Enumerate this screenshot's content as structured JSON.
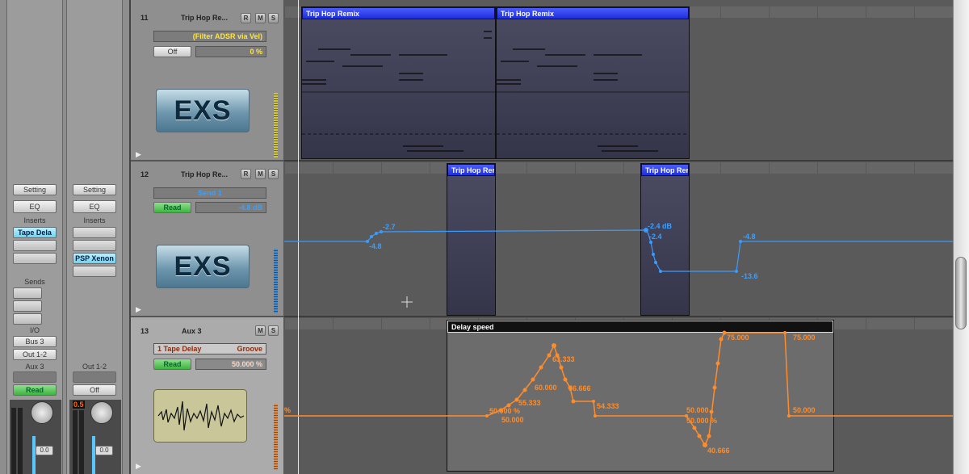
{
  "mixer": {
    "strips": [
      {
        "setting": "Setting",
        "eq": "EQ",
        "inserts_label": "Inserts",
        "inserts": [
          "Tape Dela"
        ],
        "sends_label": "Sends",
        "io_label": "I/O",
        "input": "Bus 3",
        "output": "Out 1-2",
        "name": "Aux 3",
        "automation": "Read",
        "fader": "0.0"
      },
      {
        "setting": "Setting",
        "eq": "EQ",
        "inserts_label": "Inserts",
        "inserts": [
          "PSP Xenon"
        ],
        "name": "Out 1-2",
        "automation": "Off",
        "peak": "0.5",
        "fader": "0.0"
      }
    ]
  },
  "tracks": [
    {
      "number": "11",
      "name": "Trip Hop Re...",
      "buttons": [
        "R",
        "M",
        "S"
      ],
      "parameter": "(Filter ADSR via Vel)",
      "mode": "Off",
      "value": "0 %",
      "instrument": "EXS"
    },
    {
      "number": "12",
      "name": "Trip Hop Re...",
      "buttons": [
        "R",
        "M",
        "S"
      ],
      "parameter": "Send 1",
      "mode": "Read",
      "value": "-4.8 dB",
      "instrument": "EXS"
    },
    {
      "number": "13",
      "name": "Aux 3",
      "buttons": [
        "M",
        "S"
      ],
      "parameter": "1 Tape Delay",
      "parameter_group": "Groove",
      "mode": "Read",
      "value": "50.000 %"
    }
  ],
  "regions": [
    {
      "name": "Trip Hop Remix"
    },
    {
      "name": "Trip Hop Remix"
    },
    {
      "name": "Trip Hop Remi"
    },
    {
      "name": "Trip Hop Remi"
    },
    {
      "name": "Delay speed"
    }
  ],
  "automation": {
    "track_12": [
      "-2.7",
      "-4.8",
      "-2.4 dB",
      "-2.4",
      "-13.6",
      "-4.8"
    ],
    "track_13": [
      "%",
      "50.000 %",
      "50.000",
      "55.333",
      "60.000",
      "63.333",
      "56.666",
      "54.333",
      "50.000",
      "50.000 %",
      "40.666",
      "75.000",
      "75.000",
      "50.000"
    ]
  }
}
